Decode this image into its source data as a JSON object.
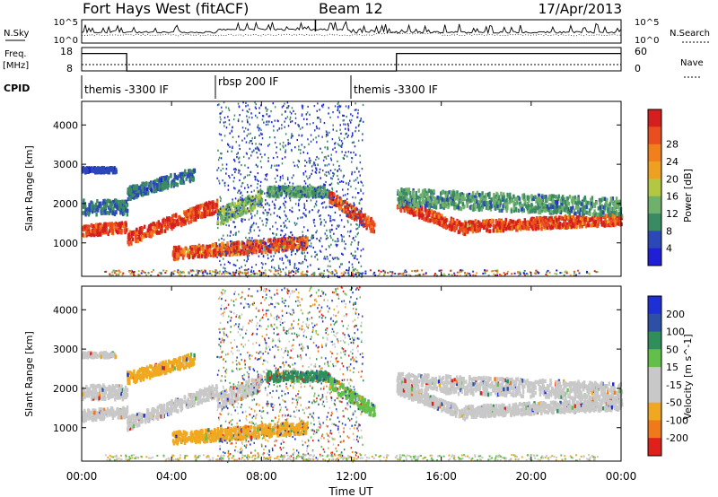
{
  "header": {
    "radar": "Fort Hays West (fitACF)",
    "beam": "Beam 12",
    "date": "17/Apr/2013"
  },
  "colors": {
    "power": [
      "#1f1fd6",
      "#2c47b8",
      "#3a8a63",
      "#6fb06c",
      "#b3c742",
      "#f0a020",
      "#f07f1c",
      "#e84e1e",
      "#d51f1f"
    ],
    "velocity": [
      "#1f2fd6",
      "#2e4fa8",
      "#2f8f5a",
      "#62c04a",
      "#c8c8c8",
      "#c8c8c8",
      "#f0a820",
      "#f07a1a",
      "#e0201a"
    ]
  },
  "chart_data": [
    {
      "type": "line",
      "name": "noise-panel",
      "left_label": "N.Sky",
      "right_label": "N.Search",
      "left_ticks": [
        "10^5",
        "10^0"
      ],
      "right_ticks": [
        "10^5",
        "10^0"
      ]
    },
    {
      "type": "line",
      "name": "freq-panel",
      "left_label_lines": [
        "Freq.",
        "[MHz]"
      ],
      "right_label": "Nave",
      "left_ticks": [
        "18",
        "8"
      ],
      "right_ticks": [
        "60",
        "0"
      ],
      "x": [
        0,
        2,
        2.01,
        14,
        14.01,
        24
      ],
      "freq_mhz": [
        17,
        17,
        9.5,
        9.5,
        17,
        17
      ]
    },
    {
      "type": "table",
      "name": "cpid-strip",
      "label": "CPID",
      "segments": [
        {
          "label": "themis -3300 IF",
          "start": 0,
          "end": 6
        },
        {
          "label": "rbsp 200 IF",
          "start": 6,
          "end": 12
        },
        {
          "label": "themis -3300 IF",
          "start": 12,
          "end": 24
        }
      ]
    },
    {
      "type": "heatmap",
      "name": "power-panel",
      "ylabel": "Slant Range [km]",
      "yticks": [
        1000,
        2000,
        3000,
        4000
      ],
      "ylim": [
        150,
        4600
      ],
      "colorbar_label": "Power [dB]",
      "colorbar_ticks": [
        "4",
        "8",
        "12",
        "16",
        "20",
        "24",
        "28"
      ]
    },
    {
      "type": "heatmap",
      "name": "velocity-panel",
      "ylabel": "Slant Range [km]",
      "yticks": [
        1000,
        2000,
        3000,
        4000
      ],
      "ylim": [
        150,
        4600
      ],
      "colorbar_label": "Velocity [m s^-1]",
      "colorbar_ticks": [
        "200",
        "100",
        "50",
        "15",
        "-15",
        "-50",
        "-100",
        "-200"
      ]
    }
  ],
  "xaxis": {
    "label": "Time UT",
    "xlim": [
      0,
      24
    ],
    "ticks": [
      "00:00",
      "04:00",
      "08:00",
      "12:00",
      "16:00",
      "20:00",
      "00:00"
    ]
  }
}
